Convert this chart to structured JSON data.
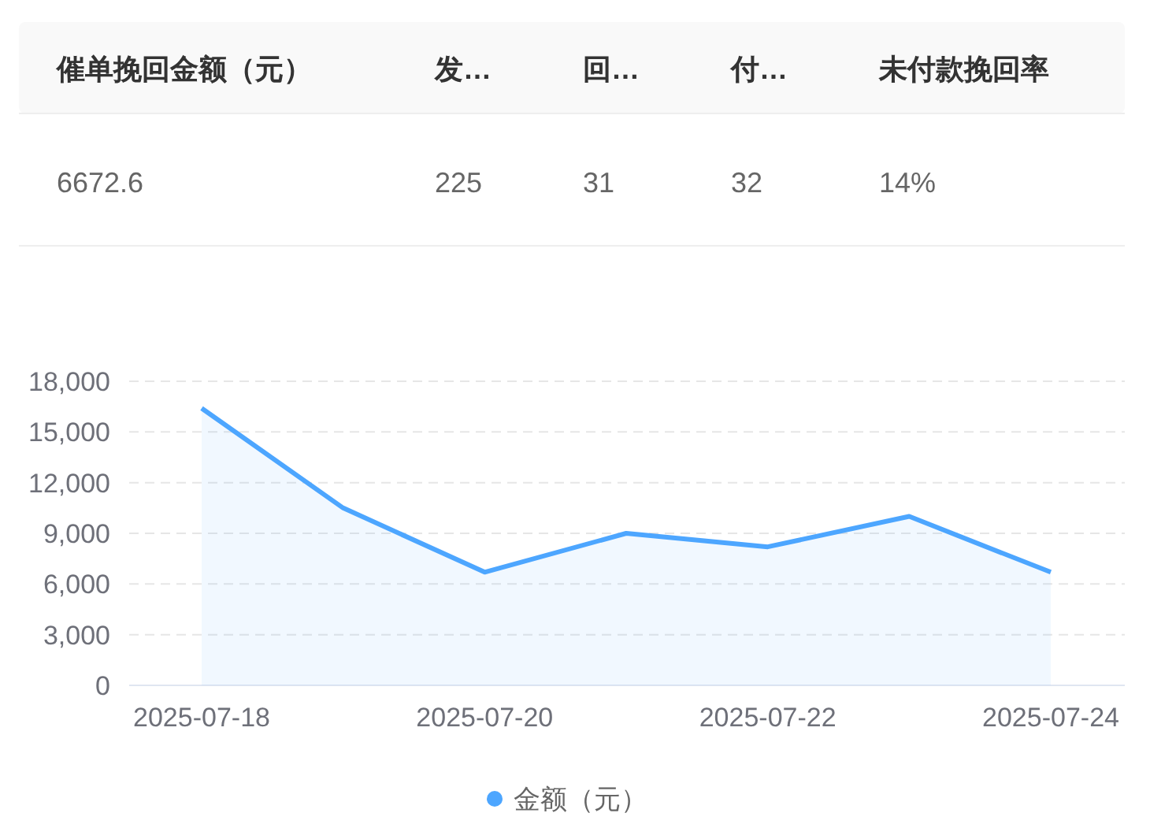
{
  "chart_data": [
    {
      "type": "other",
      "annotations": [
        "催单挽回金额（元）",
        "发…",
        "回…",
        "付…",
        "未付款挽回率",
        "6672.6",
        "225",
        "31",
        "32",
        "14%"
      ]
    },
    {
      "type": "area",
      "categories": [
        "2025-07-18",
        null,
        "2025-07-20",
        null,
        "2025-07-22",
        null,
        "2025-07-24"
      ],
      "series": [
        {
          "name": "金额（元）",
          "color": "#4da6ff",
          "values": [
            16400,
            10500,
            6700,
            9000,
            8200,
            10000,
            6700
          ]
        }
      ],
      "ylim": [
        0,
        18000
      ],
      "yticks": [
        {
          "value": 0,
          "label": "0"
        },
        {
          "value": 3000,
          "label": "3,000"
        },
        {
          "value": 6000,
          "label": "6,000"
        },
        {
          "value": 9000,
          "label": "9,000"
        },
        {
          "value": 12000,
          "label": "12,000"
        },
        {
          "value": 15000,
          "label": "15,000"
        },
        {
          "value": 18000,
          "label": "18,000"
        }
      ],
      "grid": "y",
      "legend": "bottom",
      "marker": "none"
    }
  ]
}
